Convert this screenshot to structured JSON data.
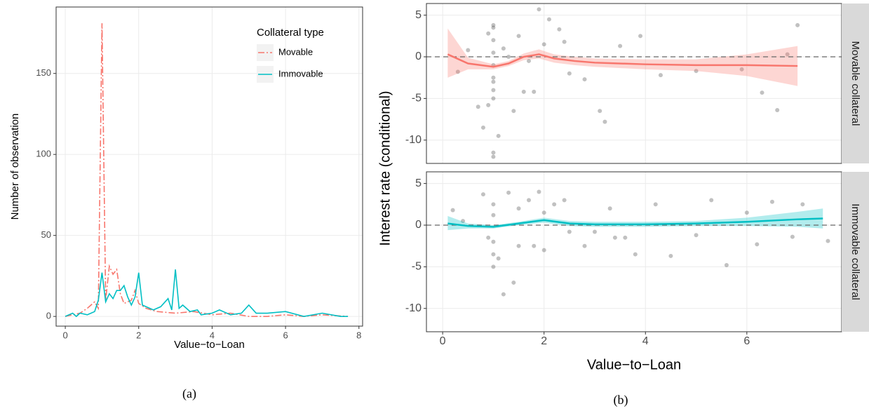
{
  "chart_data": [
    {
      "type": "line",
      "x_label": "Value−to−Loan",
      "y_label": "Number of observation",
      "caption": "(a)",
      "legend_title": "Collateral type",
      "legend": "top-right",
      "grid": true,
      "xlim": [
        -0.25,
        8.1
      ],
      "xticks": [
        0,
        2,
        4,
        6,
        8
      ],
      "ylim": [
        -6,
        191
      ],
      "yticks": [
        0,
        50,
        100,
        150
      ],
      "series": [
        {
          "name": "Movable",
          "color": "#f8766d",
          "dash": "dashdot",
          "x": [
            0,
            0.2,
            0.4,
            0.6,
            0.8,
            0.9,
            1.0,
            1.1,
            1.2,
            1.3,
            1.4,
            1.5,
            1.6,
            1.8,
            1.9,
            2.0,
            2.2,
            2.5,
            3.0,
            3.5,
            4.0,
            4.5,
            5.0,
            5.5,
            6.0,
            6.5,
            7.0,
            7.7
          ],
          "values": [
            0,
            1,
            2,
            5,
            9,
            5,
            181,
            10,
            31,
            26,
            29,
            14,
            8,
            10,
            16,
            8,
            5,
            3,
            2,
            3,
            1,
            2,
            0,
            0,
            1,
            0,
            1,
            0
          ]
        },
        {
          "name": "Immovable",
          "color": "#00bfc4",
          "dash": "solid",
          "x": [
            0,
            0.2,
            0.3,
            0.4,
            0.6,
            0.8,
            0.9,
            1.0,
            1.1,
            1.2,
            1.3,
            1.4,
            1.5,
            1.6,
            1.7,
            1.8,
            1.9,
            2.0,
            2.1,
            2.2,
            2.4,
            2.6,
            2.8,
            2.9,
            3.0,
            3.1,
            3.2,
            3.4,
            3.6,
            3.7,
            4.0,
            4.2,
            4.5,
            4.8,
            5.0,
            5.2,
            5.5,
            6.0,
            6.5,
            7.0,
            7.5,
            7.7
          ],
          "values": [
            0,
            2,
            0,
            2,
            1,
            3,
            10,
            27,
            9,
            14,
            11,
            16,
            16,
            19,
            12,
            7,
            12,
            27,
            7,
            6,
            4,
            6,
            11,
            4,
            29,
            5,
            7,
            3,
            4,
            1,
            2,
            4,
            1,
            2,
            7,
            2,
            2,
            3,
            0,
            2,
            0,
            0
          ]
        }
      ]
    },
    {
      "type": "scatter",
      "x_label": "Value−to−Loan",
      "y_label": "Interest rate (conditional)",
      "caption": "(b)",
      "grid": true,
      "hline": 0,
      "xlim": [
        -0.32,
        7.87
      ],
      "xticks": [
        0,
        2,
        4,
        6
      ],
      "ylim": [
        -12.8,
        6.4
      ],
      "yticks": [
        -10,
        -5,
        0,
        5
      ],
      "facets": [
        {
          "label": "Movable collateral",
          "color": "#f8766d",
          "points_x": [
            1,
            1,
            1,
            1,
            1,
            1,
            1,
            1,
            1,
            1,
            1.2,
            1.3,
            1.5,
            1.4,
            1.7,
            1.8,
            1.9,
            2.0,
            2.1,
            2.3,
            2.5,
            0.3,
            0.5,
            0.7,
            0.8,
            0.9,
            1.1,
            1.6,
            2.8,
            3.2,
            3.5,
            3.9,
            4.3,
            5.0,
            5.9,
            6.3,
            6.6,
            6.8,
            7.0,
            1.0,
            0.9,
            2.4,
            3.1
          ],
          "points_y": [
            3.5,
            2,
            0.5,
            -1,
            -2.5,
            -4,
            -5,
            -11.5,
            -12,
            3.8,
            1,
            0,
            2.5,
            -6.5,
            -0.5,
            -4.2,
            5.7,
            1.5,
            4.5,
            3.3,
            -2,
            -1.8,
            0.8,
            -6,
            -8.5,
            -5.8,
            -9.5,
            -4.2,
            -2.7,
            -7.8,
            1.3,
            2.5,
            -2.2,
            -1.7,
            -1.5,
            -4.3,
            -6.4,
            0.3,
            3.8,
            -3,
            2.8,
            1.8,
            -6.5
          ],
          "smooth_x": [
            0.1,
            0.5,
            1.0,
            1.3,
            1.6,
            1.9,
            2.2,
            2.6,
            3,
            4,
            5,
            6,
            7
          ],
          "smooth_y": [
            0.3,
            -0.8,
            -1.2,
            -0.8,
            0,
            0.3,
            -0.2,
            -0.5,
            -0.7,
            -0.9,
            -1.0,
            -1.0,
            -1.1
          ],
          "lower": [
            -2.5,
            -1.5,
            -1.5,
            -1.1,
            -0.4,
            -0.2,
            -0.7,
            -1.0,
            -1.2,
            -1.5,
            -1.7,
            -2.3,
            -3.5
          ],
          "upper": [
            3.4,
            -0.1,
            -0.9,
            -0.5,
            0.4,
            0.9,
            0.3,
            0,
            -0.2,
            -0.3,
            -0.3,
            0.3,
            1.3
          ]
        },
        {
          "label": "Immovable collateral",
          "color": "#00bfc4",
          "points_x": [
            0.2,
            0.4,
            0.8,
            0.9,
            1,
            1,
            1,
            1,
            1,
            1.2,
            1.3,
            1.4,
            1.5,
            1.7,
            1.8,
            1.9,
            2,
            2,
            2.2,
            2.5,
            2.8,
            3,
            3.3,
            3.6,
            3.8,
            4.2,
            4.5,
            5,
            5.3,
            5.6,
            6,
            6.2,
            6.5,
            6.9,
            7.1,
            7.6,
            1.1,
            1.5,
            2.4,
            3.4
          ],
          "points_y": [
            1.8,
            0.5,
            3.7,
            -1.5,
            1.2,
            -2,
            -3.5,
            -5,
            2.5,
            -8.3,
            3.9,
            -6.9,
            2,
            3,
            -2.5,
            4,
            1.5,
            -3,
            2.5,
            -0.8,
            -2.5,
            -0.8,
            2,
            -1.5,
            -3.5,
            2.5,
            -3.7,
            -1.2,
            3,
            -4.8,
            1.5,
            -2.3,
            2.8,
            -1.4,
            2.5,
            -1.9,
            -4,
            -2.5,
            3,
            -1.5
          ],
          "smooth_x": [
            0.1,
            0.5,
            1,
            1.5,
            2,
            2.5,
            3,
            4,
            5,
            6,
            7,
            7.5
          ],
          "smooth_y": [
            0.2,
            -0.1,
            -0.2,
            0.2,
            0.6,
            0.2,
            0.1,
            0.1,
            0.2,
            0.4,
            0.7,
            0.8
          ],
          "lower": [
            -0.6,
            -0.4,
            -0.4,
            0,
            0.3,
            -0.1,
            -0.2,
            -0.2,
            -0.1,
            -0.1,
            -0.2,
            -0.4
          ],
          "upper": [
            1.1,
            0.2,
            0,
            0.4,
            0.9,
            0.5,
            0.4,
            0.4,
            0.5,
            0.9,
            1.6,
            2.0
          ]
        }
      ]
    }
  ]
}
